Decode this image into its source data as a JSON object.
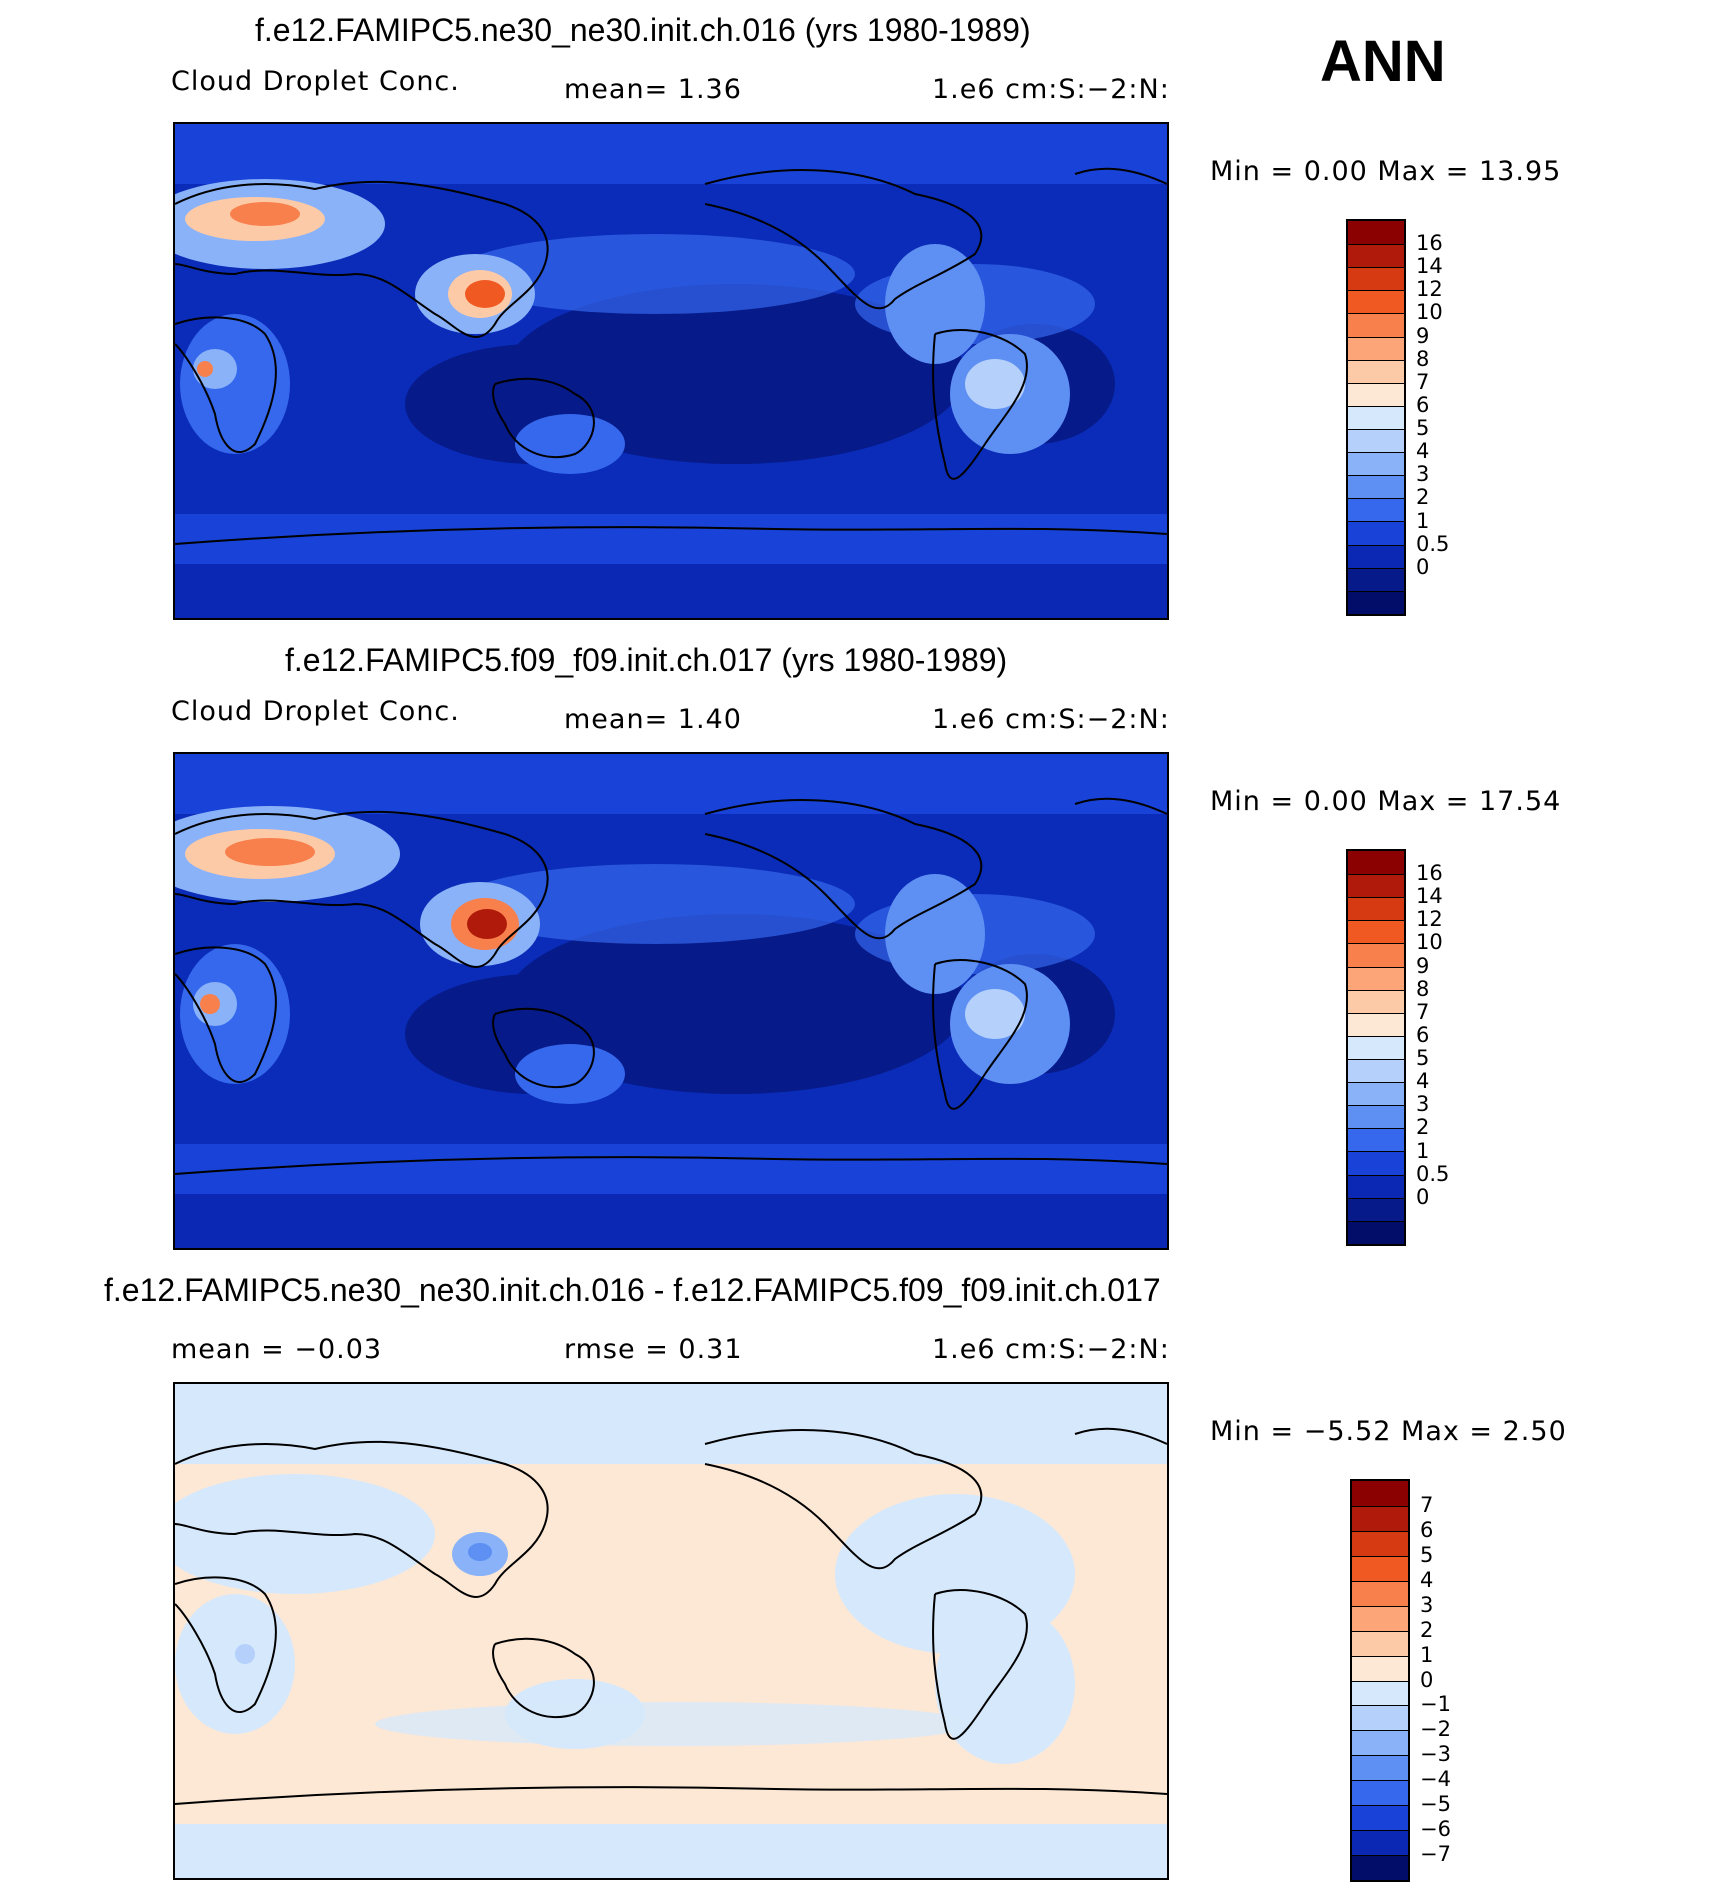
{
  "season": "ANN",
  "panels": [
    {
      "title": "f.e12.FAMIPC5.ne30_ne30.init.ch.016 (yrs 1980-1989)",
      "left_label": "Cloud Droplet Conc.",
      "mid_label": "mean=    1.36",
      "right_label": "1.e6 cm:S:−2:N:",
      "minmax": "Min  =     0.00  Max  =    13.95",
      "colorbar_ticks": [
        "16",
        "14",
        "12",
        "10",
        "9",
        "8",
        "7",
        "6",
        "5",
        "4",
        "3",
        "2",
        "1",
        "0.5",
        "0"
      ],
      "colorbar_colors": [
        "#8b0000",
        "#b01a0a",
        "#d63a12",
        "#f05a22",
        "#f8804c",
        "#fba578",
        "#fdcaa8",
        "#fde8d6",
        "#d6e8fb",
        "#b4d0fb",
        "#8ab2f8",
        "#5e8ff3",
        "#3568ec",
        "#1842d8",
        "#0a28b4",
        "#061a8a",
        "#020d6a"
      ],
      "background": "#0a2cb8",
      "series_name": "panel1"
    },
    {
      "title": "f.e12.FAMIPC5.f09_f09.init.ch.017 (yrs 1980-1989)",
      "left_label": "Cloud Droplet Conc.",
      "mid_label": "mean=    1.40",
      "right_label": "1.e6 cm:S:−2:N:",
      "minmax": "Min  =     0.00  Max  =    17.54",
      "colorbar_ticks": [
        "16",
        "14",
        "12",
        "10",
        "9",
        "8",
        "7",
        "6",
        "5",
        "4",
        "3",
        "2",
        "1",
        "0.5",
        "0"
      ],
      "colorbar_colors": [
        "#8b0000",
        "#b01a0a",
        "#d63a12",
        "#f05a22",
        "#f8804c",
        "#fba578",
        "#fdcaa8",
        "#fde8d6",
        "#d6e8fb",
        "#b4d0fb",
        "#8ab2f8",
        "#5e8ff3",
        "#3568ec",
        "#1842d8",
        "#0a28b4",
        "#061a8a",
        "#020d6a"
      ],
      "background": "#0a2cb8",
      "series_name": "panel2"
    },
    {
      "title": "f.e12.FAMIPC5.ne30_ne30.init.ch.016 - f.e12.FAMIPC5.f09_f09.init.ch.017",
      "left_label": "mean  =    −0.03",
      "mid_label": "rmse  =     0.31",
      "right_label": "1.e6 cm:S:−2:N:",
      "minmax": "Min  =    −5.52  Max  =      2.50",
      "colorbar_ticks": [
        "7",
        "6",
        "5",
        "4",
        "3",
        "2",
        "1",
        "0",
        "−1",
        "−2",
        "−3",
        "−4",
        "−5",
        "−6",
        "−7"
      ],
      "colorbar_colors": [
        "#8b0000",
        "#b01a0a",
        "#d63a12",
        "#f05a22",
        "#f8804c",
        "#fba578",
        "#fdcaa8",
        "#fde8d6",
        "#d6e8fb",
        "#b4d0fb",
        "#8ab2f8",
        "#5e8ff3",
        "#3568ec",
        "#1842d8",
        "#0a28b4",
        "#020d6a"
      ],
      "background": "#fde8d6",
      "series_name": "panel3"
    }
  ]
}
